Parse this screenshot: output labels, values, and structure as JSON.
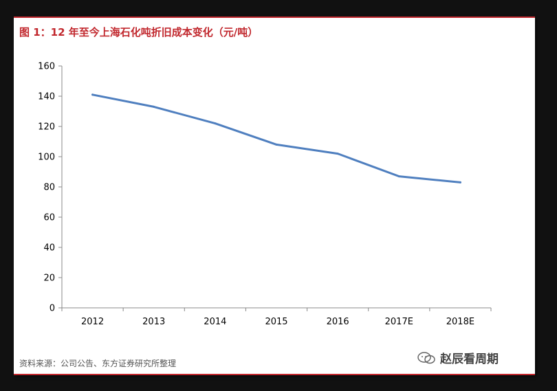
{
  "title": "图 1：12 年至今上海石化吨折旧成本变化（元/吨）",
  "source": "资料来源：公司公告、东方证券研究所整理",
  "watermark": "赵辰看周期",
  "colors": {
    "accent": "#c1272d",
    "line": "#4f7fbf"
  },
  "chart_data": {
    "type": "line",
    "title": "图 1：12 年至今上海石化吨折旧成本变化（元/吨）",
    "categories": [
      "2012",
      "2013",
      "2014",
      "2015",
      "2016",
      "2017E",
      "2018E"
    ],
    "series": [
      {
        "values": [
          141,
          133,
          122,
          108,
          102,
          87,
          83
        ]
      }
    ],
    "ylim": [
      0,
      160
    ],
    "yticks": [
      0,
      20,
      40,
      60,
      80,
      100,
      120,
      140,
      160
    ],
    "grid": false,
    "legend": "none"
  }
}
